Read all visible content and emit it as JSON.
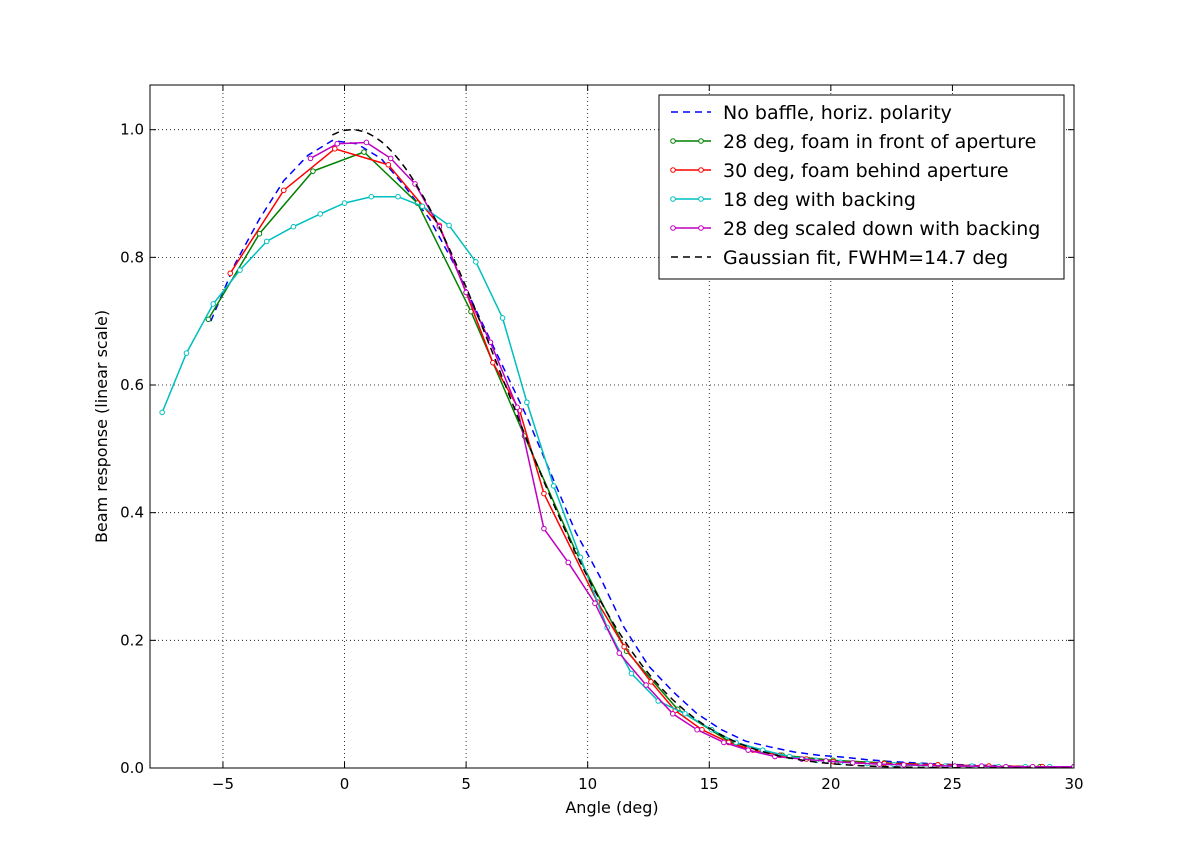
{
  "chart_data": {
    "type": "line",
    "title": "",
    "xlabel": "Angle (deg)",
    "ylabel": "Beam response (linear scale)",
    "xlim": [
      -8,
      30
    ],
    "ylim": [
      0,
      1.07
    ],
    "xticks": [
      -5,
      0,
      5,
      10,
      15,
      20,
      25,
      30
    ],
    "xtick_labels": [
      "−5",
      "0",
      "5",
      "10",
      "15",
      "20",
      "25",
      "30"
    ],
    "yticks": [
      0.0,
      0.2,
      0.4,
      0.6,
      0.8,
      1.0
    ],
    "ytick_labels": [
      "0.0",
      "0.2",
      "0.4",
      "0.6",
      "0.8",
      "1.0"
    ],
    "grid": true,
    "legend_position": "top-right",
    "series": [
      {
        "name": "No baffle, horiz. polarity",
        "color": "#0000ff",
        "style": "dashed",
        "marker": "none",
        "x": [
          -5.5,
          -4.5,
          -3.5,
          -2.5,
          -1.5,
          -0.5,
          0.5,
          1.5,
          2.5,
          3.5,
          4.5,
          5.5,
          6.5,
          7.5,
          8.5,
          9.5,
          10.5,
          11.5,
          12.5,
          13.5,
          14.5,
          15.5,
          16.5,
          17.5,
          18.5,
          19.5,
          20.5,
          21.5,
          22.5,
          23.5,
          24.5,
          25.5,
          26.5,
          27.5,
          28.5,
          29.5,
          30
        ],
        "y": [
          0.7,
          0.79,
          0.86,
          0.92,
          0.96,
          0.983,
          0.978,
          0.955,
          0.91,
          0.86,
          0.79,
          0.71,
          0.63,
          0.55,
          0.46,
          0.37,
          0.3,
          0.22,
          0.16,
          0.12,
          0.085,
          0.06,
          0.042,
          0.033,
          0.025,
          0.02,
          0.017,
          0.013,
          0.01,
          0.008,
          0.006,
          0.005,
          0.004,
          0.003,
          0.002,
          0.002,
          0.002
        ]
      },
      {
        "name": "28 deg, foam in front of aperture",
        "color": "#008000",
        "style": "solid",
        "marker": "circle",
        "x": [
          -5.6,
          -3.5,
          -1.3,
          0.8,
          3.0,
          5.2,
          7.4,
          9.5,
          11.6,
          13.7,
          15.8,
          18.0,
          20.1,
          22.2,
          24.4,
          26.5,
          28.6,
          30
        ],
        "y": [
          0.703,
          0.837,
          0.935,
          0.965,
          0.885,
          0.715,
          0.52,
          0.34,
          0.183,
          0.092,
          0.042,
          0.02,
          0.012,
          0.008,
          0.005,
          0.003,
          0.002,
          0.002
        ]
      },
      {
        "name": "30 deg, foam behind aperture",
        "color": "#ff0000",
        "style": "solid",
        "marker": "circle",
        "x": [
          -4.7,
          -2.5,
          -0.4,
          1.8,
          3.9,
          5.0,
          6.1,
          7.2,
          8.2,
          10.4,
          11.5,
          12.6,
          13.6,
          14.7,
          15.8,
          16.8,
          17.9,
          19.0,
          20.1,
          22.2,
          24.4,
          26.5,
          28.7,
          30
        ],
        "y": [
          0.775,
          0.905,
          0.97,
          0.945,
          0.85,
          0.745,
          0.635,
          0.56,
          0.43,
          0.26,
          0.19,
          0.135,
          0.09,
          0.06,
          0.04,
          0.028,
          0.02,
          0.014,
          0.01,
          0.007,
          0.005,
          0.003,
          0.002,
          0.002
        ]
      },
      {
        "name": "18 deg with backing",
        "color": "#00bfbf",
        "style": "solid",
        "marker": "circle",
        "x": [
          -7.5,
          -6.5,
          -5.4,
          -4.3,
          -3.2,
          -2.1,
          -1.0,
          0.0,
          1.1,
          2.2,
          3.2,
          4.3,
          5.4,
          6.5,
          7.5,
          8.6,
          9.7,
          10.8,
          11.8,
          12.9,
          14.0,
          15.1,
          16.1,
          17.2,
          18.3,
          19.4,
          20.4,
          21.5,
          22.6,
          23.7,
          24.7,
          25.8,
          26.9,
          28.0,
          29.0,
          30
        ],
        "y": [
          0.557,
          0.65,
          0.727,
          0.78,
          0.825,
          0.848,
          0.868,
          0.885,
          0.895,
          0.895,
          0.88,
          0.85,
          0.793,
          0.705,
          0.573,
          0.442,
          0.33,
          0.22,
          0.148,
          0.105,
          0.085,
          0.06,
          0.04,
          0.028,
          0.018,
          0.012,
          0.009,
          0.007,
          0.005,
          0.004,
          0.003,
          0.003,
          0.002,
          0.002,
          0.002,
          0.002
        ]
      },
      {
        "name": "28 deg scaled down with backing",
        "color": "#bf00bf",
        "style": "solid",
        "marker": "circle",
        "x": [
          -1.4,
          -0.3,
          0.9,
          1.9,
          2.9,
          3.9,
          5.0,
          6.0,
          7.1,
          8.2,
          9.2,
          10.3,
          11.3,
          12.4,
          13.5,
          14.5,
          15.6,
          16.6,
          17.7,
          18.8,
          19.8,
          20.9,
          22.0,
          23.0,
          24.1,
          25.1,
          26.2,
          27.2,
          28.3,
          30
        ],
        "y": [
          0.955,
          0.978,
          0.98,
          0.955,
          0.915,
          0.848,
          0.745,
          0.667,
          0.565,
          0.375,
          0.322,
          0.258,
          0.18,
          0.13,
          0.085,
          0.06,
          0.04,
          0.028,
          0.018,
          0.014,
          0.011,
          0.008,
          0.006,
          0.005,
          0.004,
          0.003,
          0.003,
          0.002,
          0.002,
          0.002
        ]
      },
      {
        "name": "Gaussian fit, FWHM=14.7 deg",
        "color": "#000000",
        "style": "dashed",
        "marker": "none",
        "function": "gaussian",
        "center": 0.3,
        "fwhm": 14.7,
        "amplitude": 1.0,
        "x_range": [
          -0.5,
          30
        ]
      }
    ]
  }
}
